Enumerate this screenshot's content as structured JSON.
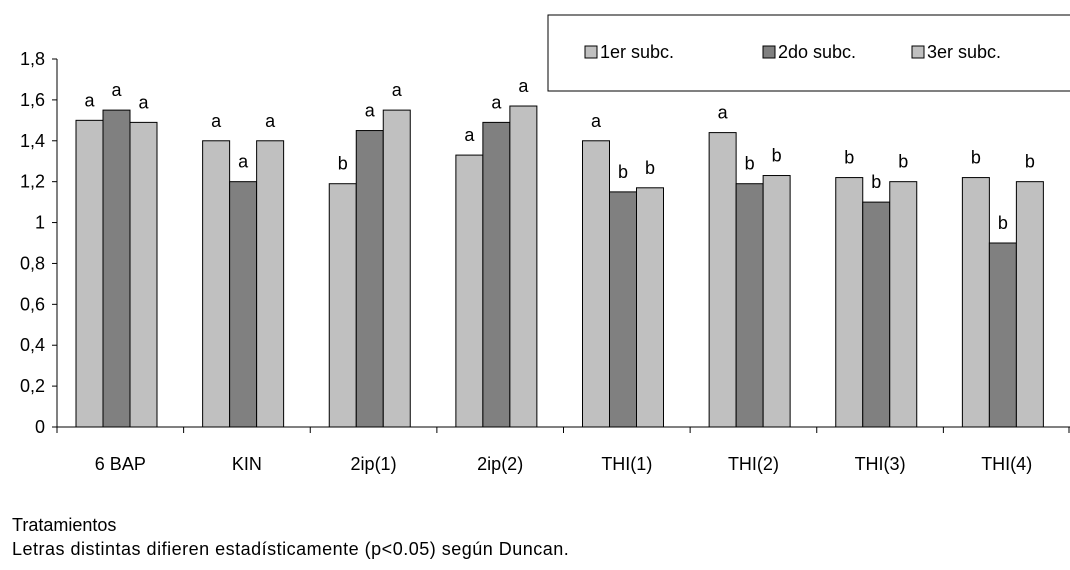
{
  "chart_data": {
    "type": "bar",
    "categories": [
      "6 BAP",
      "KIN",
      "2ip(1)",
      "2ip(2)",
      "THI(1)",
      "THI(2)",
      "THI(3)",
      "THI(4)"
    ],
    "series": [
      {
        "name": "1er subc.",
        "color": "#c0c0c0",
        "values": [
          1.5,
          1.4,
          1.19,
          1.33,
          1.4,
          1.44,
          1.22,
          1.22
        ],
        "labels": [
          "a",
          "a",
          "b",
          "a",
          "a",
          "a",
          "b",
          "b"
        ]
      },
      {
        "name": "2do subc.",
        "color": "#808080",
        "values": [
          1.55,
          1.2,
          1.45,
          1.49,
          1.15,
          1.19,
          1.1,
          0.9
        ],
        "labels": [
          "a",
          "a",
          "a",
          "a",
          "b",
          "b",
          "b",
          "b"
        ]
      },
      {
        "name": "3er subc.",
        "color": "#c0c0c0",
        "values": [
          1.49,
          1.4,
          1.55,
          1.57,
          1.17,
          1.23,
          1.2,
          1.2
        ],
        "labels": [
          "a",
          "a",
          "a",
          "a",
          "b",
          "b",
          "b",
          "b"
        ]
      }
    ],
    "ylim": [
      0,
      1.8
    ],
    "yticks": [
      "0",
      "0,2",
      "0,4",
      "0,6",
      "0,8",
      "1",
      "1,2",
      "1,4",
      "1,6",
      "1,8"
    ],
    "xlabel": "Tratamientos",
    "ylabel": "",
    "note": "Letras distintas difieren estadísticamente (p<0.05) según Duncan.",
    "legend_position": "top-right",
    "grid": false
  }
}
